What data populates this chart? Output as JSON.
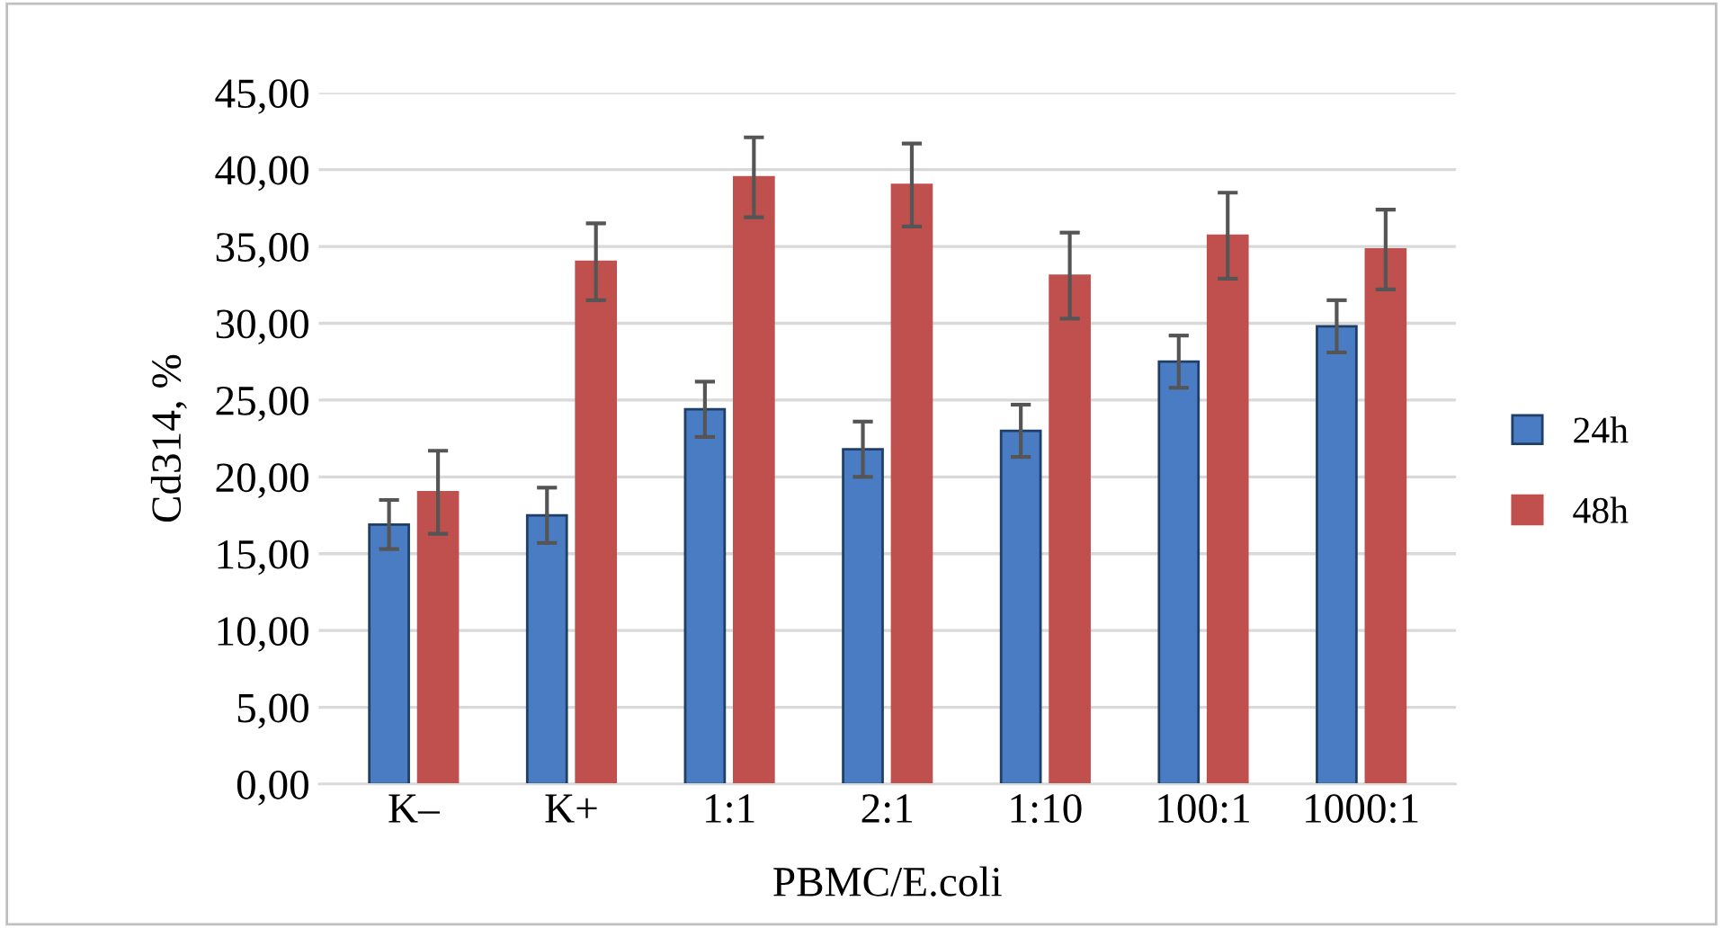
{
  "chart_data": {
    "type": "bar",
    "xlabel": "PBMC/E.coli",
    "ylabel": "Cd314, %",
    "categories": [
      "K–",
      "K+",
      "1:1",
      "2:1",
      "1:10",
      "100:1",
      "1000:1"
    ],
    "series": [
      {
        "name": "24h",
        "color": "#4a7cc3",
        "values": [
          16.9,
          17.5,
          24.4,
          21.8,
          23.0,
          27.5,
          29.8
        ],
        "errors": [
          1.6,
          1.8,
          1.8,
          1.8,
          1.7,
          1.7,
          1.7
        ]
      },
      {
        "name": "48h",
        "color": "#c0504d",
        "values": [
          19.0,
          34.0,
          39.5,
          39.0,
          33.1,
          35.7,
          34.8
        ],
        "errors": [
          2.7,
          2.5,
          2.6,
          2.7,
          2.8,
          2.8,
          2.6
        ]
      }
    ],
    "ylim": [
      0,
      45
    ],
    "yticks": [
      {
        "value": 0,
        "label": "0,00"
      },
      {
        "value": 5,
        "label": "5,00"
      },
      {
        "value": 10,
        "label": "10,00"
      },
      {
        "value": 15,
        "label": "15,00"
      },
      {
        "value": 20,
        "label": "20,00"
      },
      {
        "value": 25,
        "label": "25,00"
      },
      {
        "value": 30,
        "label": "30,00"
      },
      {
        "value": 35,
        "label": "35,00"
      },
      {
        "value": 40,
        "label": "40,00"
      },
      {
        "value": 45,
        "label": "45,00"
      }
    ],
    "grid": "y",
    "legend": "right"
  }
}
